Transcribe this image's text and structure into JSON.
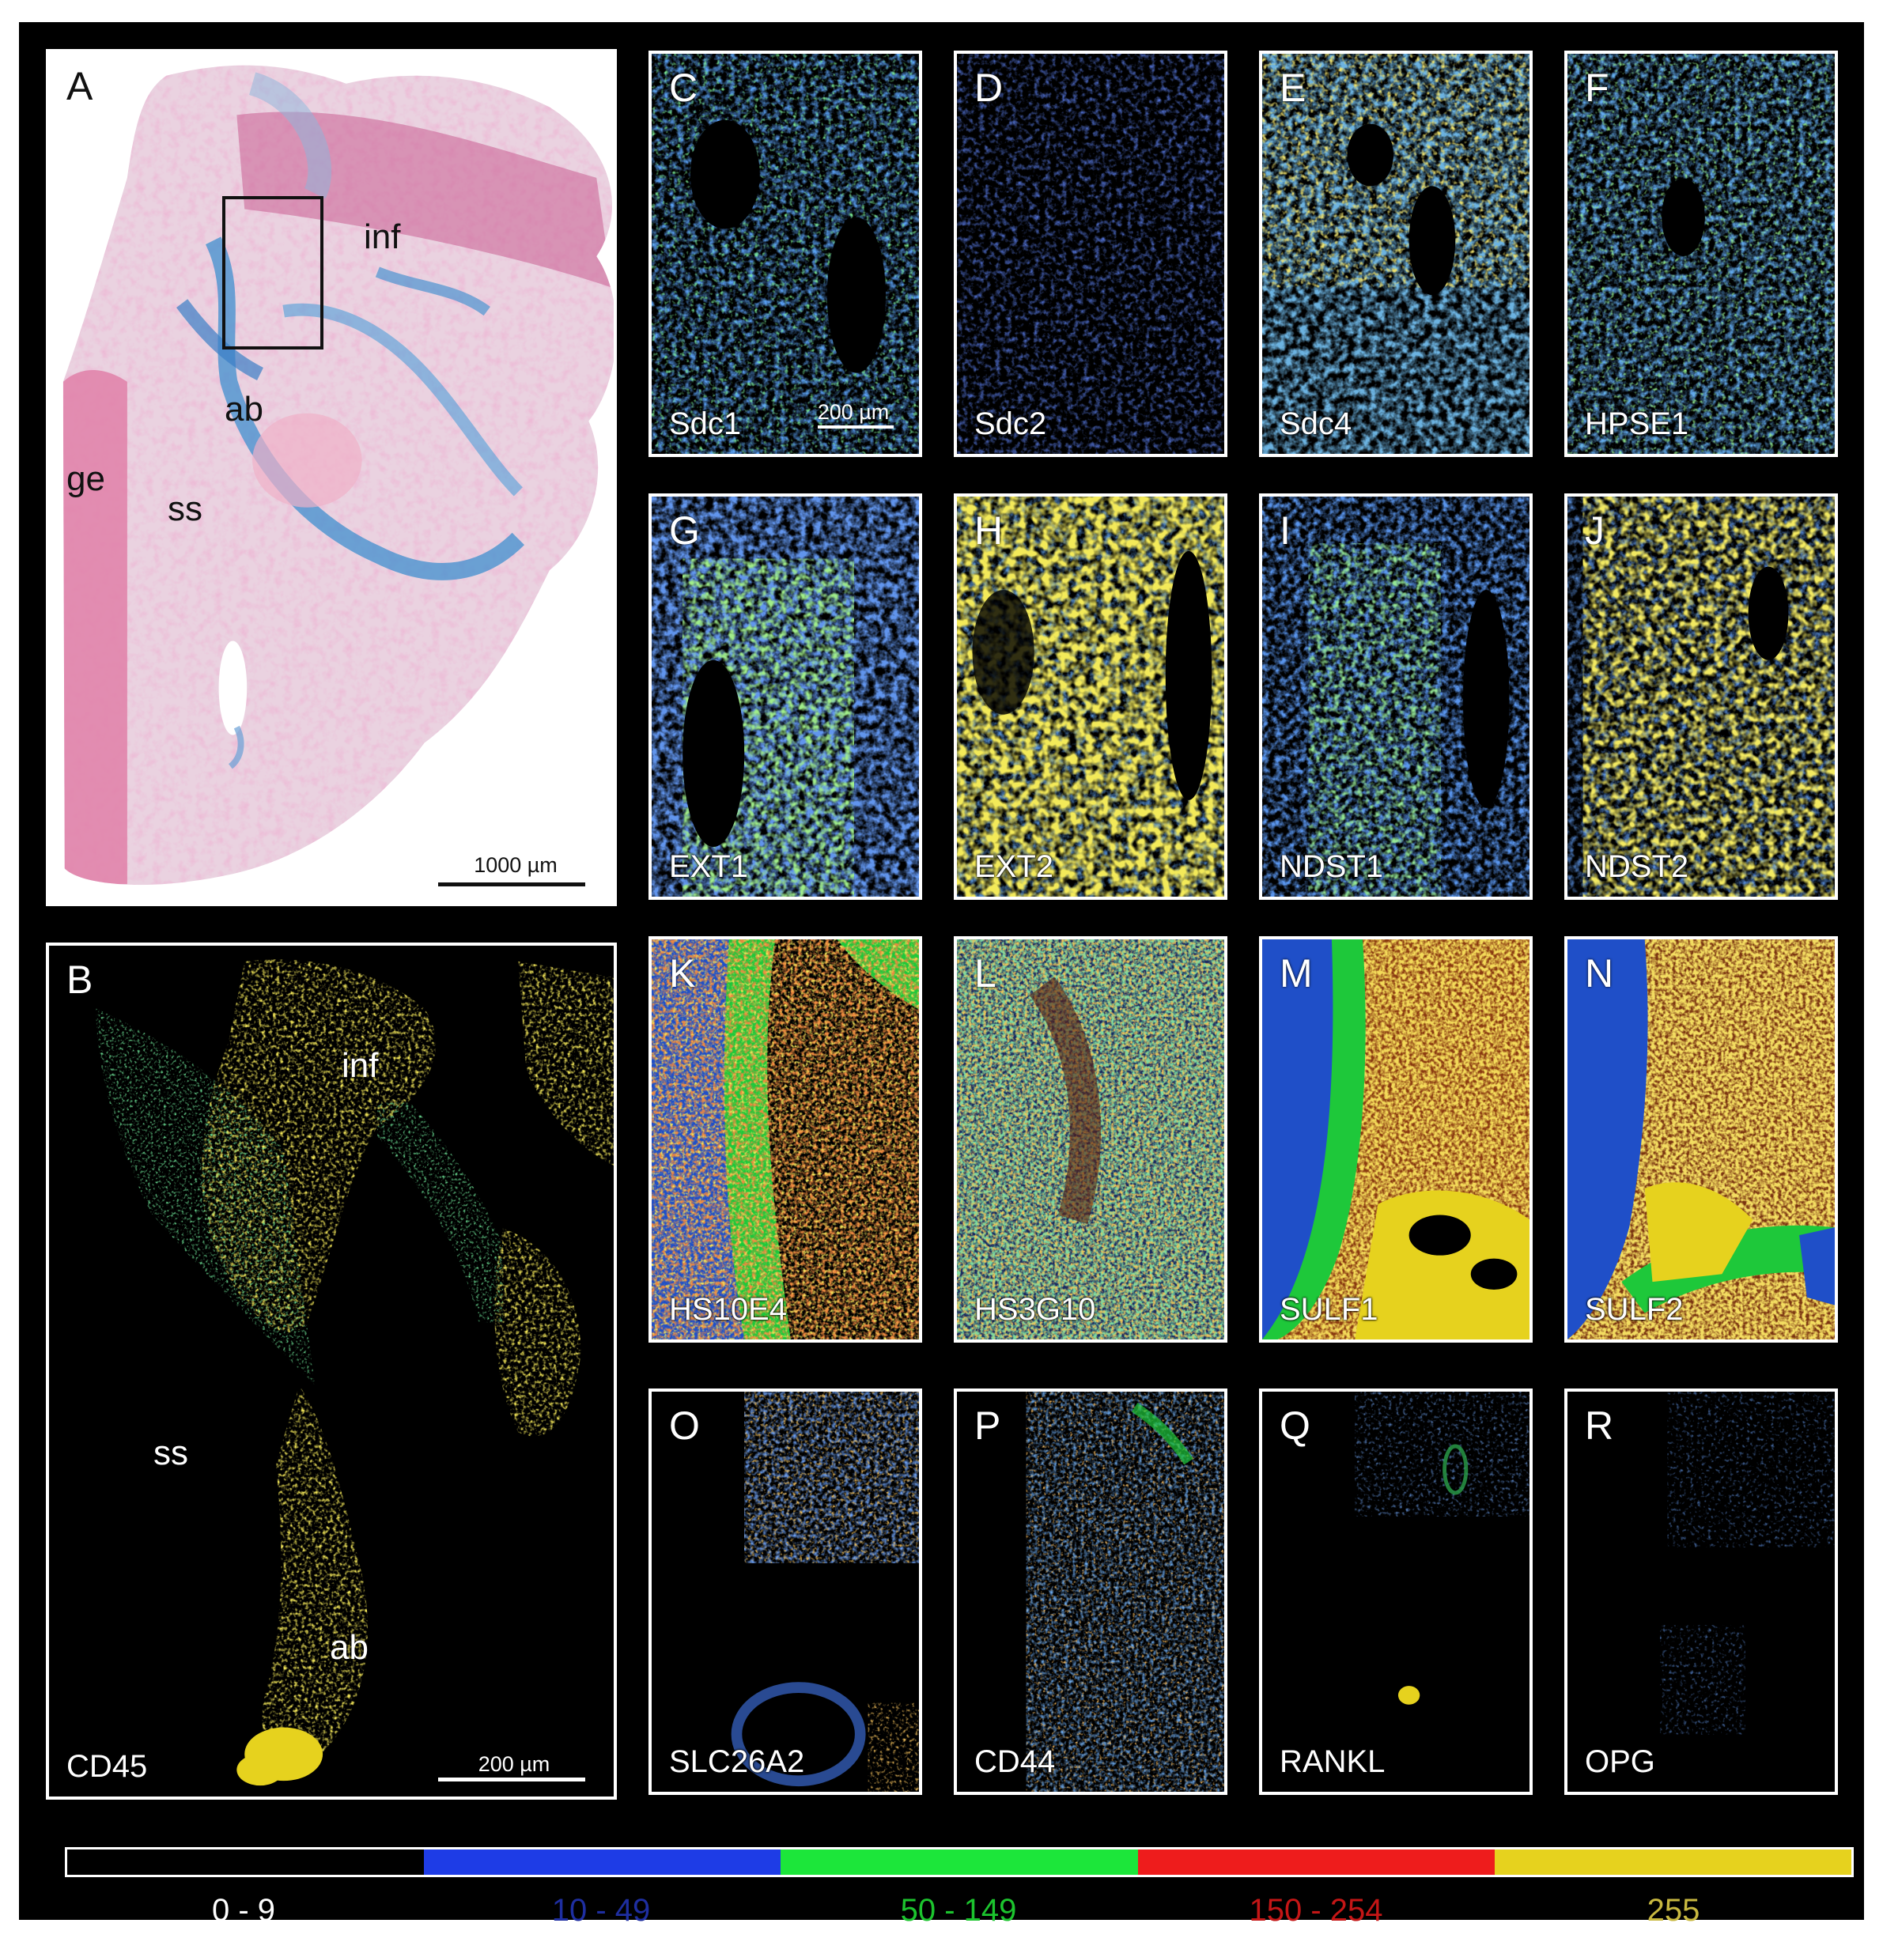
{
  "colors": {
    "level_0_9": "#000000",
    "level_10_49": "#1e3ce6",
    "level_50_149": "#1ce63a",
    "level_150_254": "#ee1c1c",
    "level_255": "#e6d21e"
  },
  "panel_a": {
    "letter": "A",
    "regions": {
      "inf": "inf",
      "ab": "ab",
      "ge": "ge",
      "ss": "ss"
    },
    "scale_bar": "1000 µm"
  },
  "panel_b": {
    "letter": "B",
    "label": "CD45",
    "regions": {
      "inf": "inf",
      "ss": "ss",
      "ab": "ab"
    },
    "scale_bar": "200 µm"
  },
  "panels": [
    {
      "letter": "C",
      "label": "Sdc1",
      "scale_bar": "200 µm"
    },
    {
      "letter": "D",
      "label": "Sdc2"
    },
    {
      "letter": "E",
      "label": "Sdc4"
    },
    {
      "letter": "F",
      "label": "HPSE1"
    },
    {
      "letter": "G",
      "label": "EXT1"
    },
    {
      "letter": "H",
      "label": "EXT2"
    },
    {
      "letter": "I",
      "label": "NDST1"
    },
    {
      "letter": "J",
      "label": "NDST2"
    },
    {
      "letter": "K",
      "label": "HS10E4"
    },
    {
      "letter": "L",
      "label": "HS3G10"
    },
    {
      "letter": "M",
      "label": "SULF1"
    },
    {
      "letter": "N",
      "label": "SULF2"
    },
    {
      "letter": "O",
      "label": "SLC26A2"
    },
    {
      "letter": "P",
      "label": "CD44"
    },
    {
      "letter": "Q",
      "label": "RANKL"
    },
    {
      "letter": "R",
      "label": "OPG"
    }
  ],
  "legend": [
    {
      "range": "0 - 9",
      "color": "#ffffff"
    },
    {
      "range": "10 - 49",
      "color": "#1e2ea0"
    },
    {
      "range": "50 - 149",
      "color": "#1cc42e"
    },
    {
      "range": "150 - 254",
      "color": "#c41616"
    },
    {
      "range": "255",
      "color": "#c8b840"
    }
  ]
}
